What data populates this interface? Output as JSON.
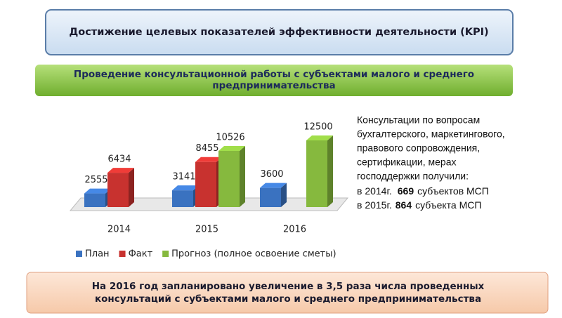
{
  "header": {
    "title": "Достижение целевых показателей эффективности деятельности (KPI)"
  },
  "subheader": {
    "lines": [
      "Проведение консультационной работы с субъектами малого и среднего",
      "предпринимательства"
    ]
  },
  "chart_data": {
    "type": "bar3d",
    "categories": [
      "2014",
      "2015",
      "2016"
    ],
    "series": [
      {
        "name": "План",
        "color": "#3a72c0",
        "values": [
          2555,
          3141,
          3600
        ]
      },
      {
        "name": "Факт",
        "color": "#c8322f",
        "values": [
          6434,
          8455,
          null
        ]
      },
      {
        "name": "Прогноз (полное освоение сметы)",
        "color": "#86b93e",
        "values": [
          null,
          10526,
          12500
        ]
      }
    ]
  },
  "note": {
    "lines": [
      "Консультации по вопросам",
      "бухгалтерского, маркетингового,",
      "правового сопровождения,",
      "сертификации, мерах",
      "господдержки получили:"
    ],
    "items": [
      {
        "prefix": "в 2014г.",
        "number": "669",
        "suffix": "субъектов МСП"
      },
      {
        "prefix": "в 2015г.",
        "number": "864",
        "suffix": "субъекта МСП"
      }
    ]
  },
  "footer": {
    "lines": [
      "На 2016 год запланировано увеличение в 3,5 раза числа проведенных",
      "консультаций с субъектами малого и среднего предпринимательства"
    ]
  }
}
